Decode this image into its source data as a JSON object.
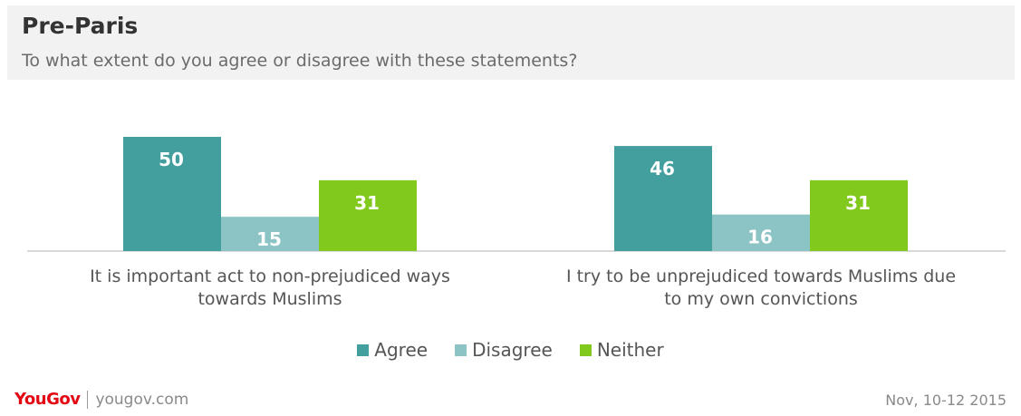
{
  "header": {
    "title": "Pre-Paris",
    "subtitle": "To what extent do you agree or disagree with these statements?"
  },
  "chart_data": {
    "type": "bar",
    "categories": [
      [
        "It is important act to non-prejudiced ways",
        "towards Muslims"
      ],
      [
        "I try to be unprejudiced towards Muslims due",
        "to my own convictions"
      ]
    ],
    "series": [
      {
        "name": "Agree",
        "values": [
          50,
          46
        ],
        "color": "#439e9e"
      },
      {
        "name": "Disagree",
        "values": [
          15,
          16
        ],
        "color": "#8cc3c5"
      },
      {
        "name": "Neither",
        "values": [
          31,
          31
        ],
        "color": "#82c91e"
      }
    ],
    "ylim": [
      0,
      50
    ],
    "grid": false,
    "legend_position": "bottom"
  },
  "footer": {
    "brand_you": "You",
    "brand_gov": "Gov",
    "site": "yougov.com",
    "date": "Nov, 10-12 2015"
  }
}
